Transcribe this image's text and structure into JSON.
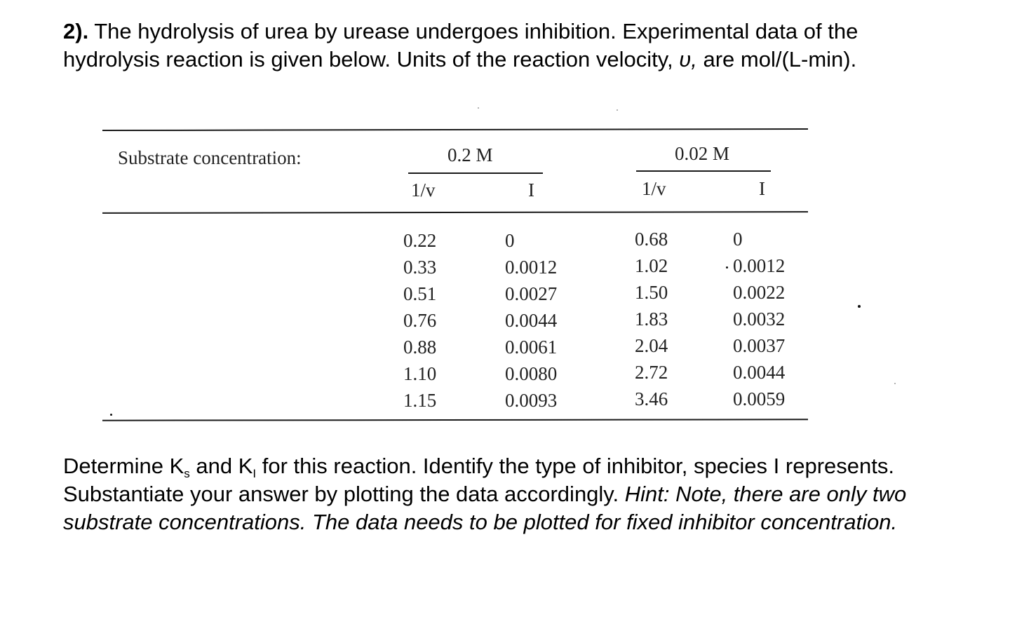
{
  "problem": {
    "number": "2).",
    "intro_line1": " The hydrolysis of urea by urease undergoes inhibition.  Experimental data of the",
    "intro_line2_a": "hydrolysis reaction is given below.  Units of the reaction velocity, ",
    "velocity_symbol": "υ,",
    "intro_line2_b": " are mol/(L-min)."
  },
  "table": {
    "row_label": "Substrate concentration:",
    "groups": [
      {
        "concentration": "0.2 M",
        "col_inv_v": "1/v",
        "col_i": "I"
      },
      {
        "concentration": "0.02 M",
        "col_inv_v": "1/v",
        "col_i": "I"
      }
    ],
    "rows": [
      [
        "0.22",
        "0",
        "0.68",
        "0"
      ],
      [
        "0.33",
        "0.0012",
        "1.02",
        "0.0012"
      ],
      [
        "0.51",
        "0.0027",
        "1.50",
        "0.0022"
      ],
      [
        "0.76",
        "0.0044",
        "1.83",
        "0.0032"
      ],
      [
        "0.88",
        "0.0061",
        "2.04",
        "0.0037"
      ],
      [
        "1.10",
        "0.0080",
        "2.72",
        "0.0044"
      ],
      [
        "1.15",
        "0.0093",
        "3.46",
        "0.0059"
      ]
    ]
  },
  "question": {
    "line1_a": "Determine K",
    "sub_s": "s",
    "line1_b": " and K",
    "sub_i": "I",
    "line1_c": " for this reaction.  Identify the type of inhibitor, species I represents.",
    "line2_a": "Substantiate your answer by plotting the data accordingly. ",
    "line2_hint": "Hint: Note, there are only two",
    "line3_hint": "substrate concentrations. The data needs to be plotted for fixed inhibitor concentration."
  }
}
